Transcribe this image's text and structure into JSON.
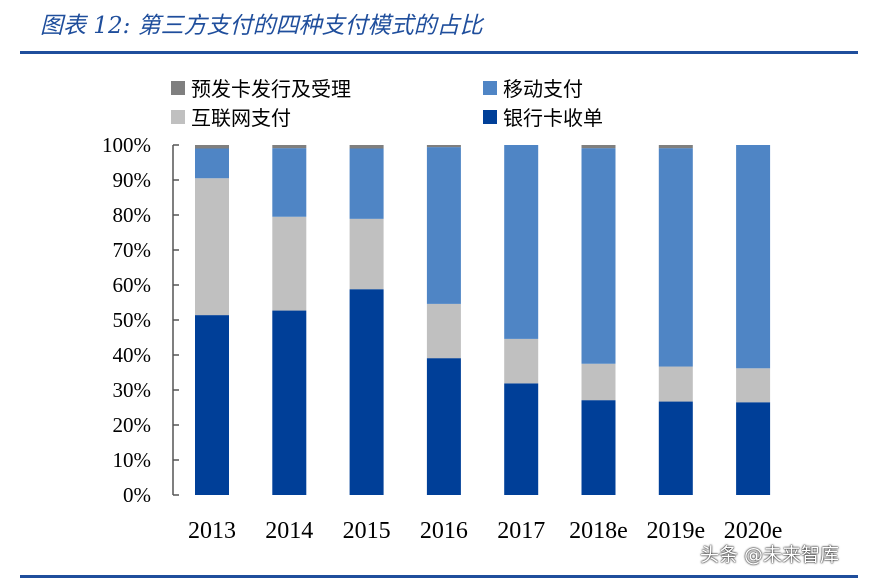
{
  "title": "图表 12: 第三方支付的四种支付模式的占比",
  "watermark": "头条 @未来智库",
  "chart_data": {
    "type": "bar",
    "stacked": true,
    "title": "",
    "xlabel": "",
    "ylabel": "",
    "ylim": [
      0,
      100
    ],
    "yticks": [
      "0%",
      "10%",
      "20%",
      "30%",
      "40%",
      "50%",
      "60%",
      "70%",
      "80%",
      "90%",
      "100%"
    ],
    "categories": [
      "2013",
      "2014",
      "2015",
      "2016",
      "2017",
      "2018e",
      "2019e",
      "2020e"
    ],
    "legend_position": "top",
    "series": [
      {
        "name": "银行卡收单",
        "color": "#003f98",
        "values": [
          51.4,
          52.7,
          58.8,
          39.1,
          31.9,
          27.1,
          26.7,
          26.5
        ]
      },
      {
        "name": "互联网支付",
        "color": "#c0c0c0",
        "values": [
          39.1,
          26.8,
          20.1,
          15.5,
          12.7,
          10.4,
          10.0,
          9.7
        ]
      },
      {
        "name": "移动支付",
        "color": "#4f85c5",
        "values": [
          8.5,
          19.6,
          20.1,
          44.8,
          55.4,
          61.6,
          62.4,
          63.8
        ]
      },
      {
        "name": "预发卡发行及受理",
        "color": "#7f7f7f",
        "values": [
          1.0,
          0.9,
          1.0,
          0.6,
          0.0,
          0.9,
          0.9,
          0.0
        ]
      }
    ]
  }
}
